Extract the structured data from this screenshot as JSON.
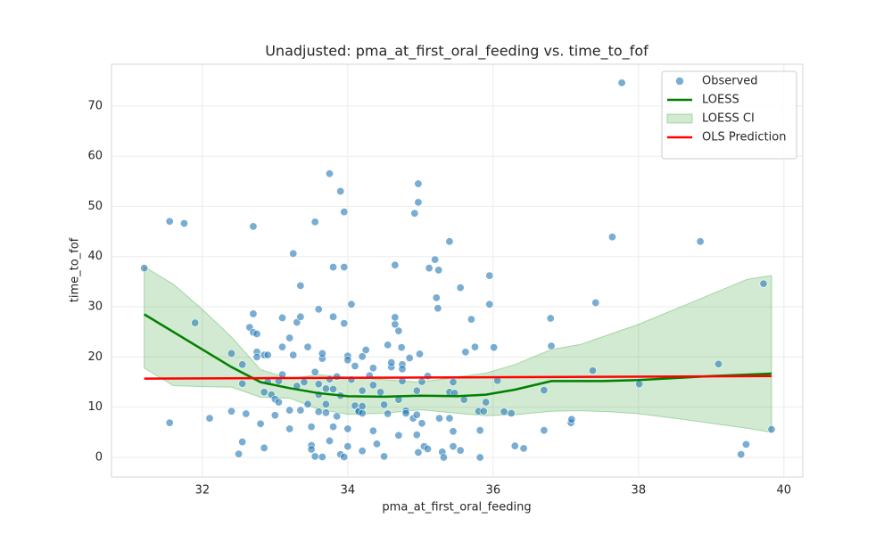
{
  "chart_data": {
    "type": "scatter",
    "title": "Unadjusted: pma_at_first_oral_feeding vs. time_to_fof",
    "x_label": "pma_at_first_oral_feeding",
    "y_label": "time_to_fof",
    "xlim": [
      30.75,
      40.26
    ],
    "ylim": [
      -3.9,
      78.3
    ],
    "xticks": [
      32,
      34,
      36,
      38,
      40
    ],
    "yticks": [
      0,
      10,
      20,
      30,
      40,
      50,
      60,
      70
    ],
    "grid": true,
    "legend": "upper right",
    "series": [
      {
        "name": "Observed",
        "kind": "points",
        "color": "#1f77b4",
        "x": [
          31.2,
          31.55,
          31.75,
          31.55,
          31.9,
          32.1,
          32.4,
          32.4,
          32.5,
          32.55,
          32.55,
          32.55,
          32.6,
          32.65,
          32.7,
          32.7,
          32.7,
          32.75,
          32.75,
          32.75,
          32.8,
          32.85,
          32.85,
          32.85,
          32.9,
          32.9,
          32.95,
          33,
          33.0,
          33.05,
          33.05,
          33.1,
          33.1,
          33.1,
          33.2,
          33.2,
          33.2,
          33.25,
          33.25,
          33.3,
          33.3,
          33.35,
          33.35,
          33.35,
          33.4,
          33.45,
          33.45,
          33.5,
          33.5,
          33.5,
          33.55,
          33.55,
          33.55,
          33.6,
          33.6,
          33.6,
          33.6,
          33.65,
          33.65,
          33.65,
          33.7,
          33.7,
          33.7,
          33.75,
          33.75,
          33.75,
          33.8,
          33.8,
          33.8,
          33.8,
          33.85,
          33.85,
          33.9,
          33.9,
          33.9,
          33.95,
          33.95,
          33.95,
          33.95,
          34,
          34,
          34,
          34,
          34.05,
          34.05,
          34.1,
          34.1,
          34.15,
          34.15,
          34.2,
          34.2,
          34.2,
          34.2,
          34.2,
          34.25,
          34.3,
          34.35,
          34.35,
          34.35,
          34.4,
          34.45,
          34.5,
          34.5,
          34.55,
          34.55,
          34.6,
          34.6,
          34.65,
          34.65,
          34.7,
          34.7,
          34.7,
          34.75,
          34.75,
          34.75,
          34.8,
          34.8,
          34.85,
          34.9,
          34.65,
          34.95,
          34.74,
          34.92,
          34.97,
          34.97,
          34.95,
          34.95,
          34.97,
          34.99,
          35.02,
          35.02,
          35.05,
          35.1,
          35.1,
          35.12,
          35.2,
          35.22,
          35.24,
          35.25,
          35.26,
          35.3,
          35.32,
          35.4,
          35.4,
          35.4,
          35.45,
          35.47,
          35.45,
          35.45,
          35.55,
          35.55,
          35.6,
          35.62,
          35.7,
          35.75,
          35.8,
          35.82,
          35.82,
          35.87,
          35.9,
          35.95,
          35.95,
          36.01,
          36.06,
          36.15,
          36.25,
          36.3,
          36.42,
          36.7,
          36.7,
          36.79,
          36.8,
          37.07,
          37.08,
          37.37,
          37.41,
          37.64,
          37.77,
          38.01,
          38.85,
          39.1,
          39.41,
          39.48,
          39.72,
          39.83
        ],
        "values": [
          37.7,
          47,
          46.6,
          6.9,
          26.8,
          7.8,
          20.7,
          9.2,
          0.7,
          3.1,
          14.7,
          18.5,
          8.7,
          25.9,
          24.9,
          28.6,
          46,
          21,
          20,
          24.6,
          6.7,
          13,
          20.4,
          1.9,
          20.4,
          15.1,
          12.5,
          11.6,
          8.4,
          15.2,
          11,
          22,
          16.5,
          27.8,
          23.8,
          5.7,
          9.4,
          40.6,
          20.4,
          14.2,
          26.9,
          34.2,
          28,
          9.4,
          15,
          10.6,
          22,
          6.1,
          2.4,
          1.6,
          0.2,
          17,
          46.9,
          14.6,
          12.5,
          29.5,
          9.1,
          19.7,
          20.7,
          0.1,
          10.6,
          8.9,
          13.7,
          56.5,
          3.3,
          15.6,
          6.1,
          13.6,
          28,
          37.9,
          8.2,
          16.1,
          12.3,
          53,
          0.6,
          0.1,
          48.9,
          37.9,
          26.7,
          20.2,
          19.4,
          5.7,
          2.2,
          30.5,
          15.5,
          10.3,
          18.2,
          9.3,
          9.1,
          13.3,
          10.2,
          20.1,
          8.8,
          1.3,
          21.4,
          16.3,
          17.8,
          14.4,
          5.3,
          2.7,
          13,
          10.5,
          0.2,
          8.7,
          22.4,
          18,
          18.9,
          38.3,
          26.5,
          25.2,
          4.4,
          11.5,
          18.5,
          17.6,
          15.2,
          9.3,
          8.8,
          19.8,
          7.8,
          27.9,
          8.5,
          21.9,
          48.6,
          50.8,
          54.5,
          13.3,
          4.5,
          1,
          20.6,
          15.1,
          6.8,
          2.2,
          1.7,
          16.2,
          37.7,
          39.4,
          31.8,
          29.7,
          37.3,
          7.8,
          1.1,
          0,
          7.8,
          13,
          43,
          15,
          12.8,
          5.2,
          2.2,
          33.8,
          1.4,
          11.5,
          21,
          27.5,
          22,
          9.2,
          5.4,
          0,
          9.2,
          11,
          30.5,
          36.2,
          21.9,
          15.3,
          9.1,
          8.8,
          2.3,
          1.8,
          5.4,
          13.4,
          27.7,
          22.2,
          6.9,
          7.6,
          17.3,
          30.8,
          43.9,
          74.6,
          14.6,
          43,
          18.6,
          0.6,
          2.6,
          34.6,
          5.6
        ]
      },
      {
        "name": "LOESS",
        "kind": "line",
        "color": "green",
        "x": [
          31.2,
          31.6,
          32,
          32.4,
          32.8,
          33.2,
          33.6,
          34,
          34.5,
          35,
          35.5,
          35.9,
          36.3,
          36.8,
          37.5,
          38,
          38.5,
          39,
          39.5,
          39.83
        ],
        "values": [
          28.5,
          25,
          21.5,
          18,
          15,
          13.8,
          12.8,
          12.2,
          12.1,
          12.3,
          12.2,
          12.5,
          13.5,
          15.2,
          15.2,
          15.4,
          15.8,
          16.2,
          16.5,
          16.7
        ]
      },
      {
        "name": "LOESS CI",
        "kind": "band",
        "color": "#2ca02c",
        "x": [
          31.2,
          31.6,
          32,
          32.4,
          32.8,
          33.2,
          33.6,
          34,
          34.5,
          35,
          35.5,
          35.9,
          36.3,
          36.8,
          37.2,
          37.6,
          38,
          38.5,
          39,
          39.5,
          39.83
        ],
        "upper": [
          38,
          34.5,
          29.5,
          24,
          17.5,
          15.7,
          16.5,
          16,
          15.5,
          15,
          16,
          16.8,
          18.5,
          21.5,
          22.5,
          24.5,
          26.5,
          29.5,
          32.5,
          35.5,
          36.2
        ],
        "lower": [
          17.8,
          14.3,
          14.1,
          14,
          12,
          11.8,
          9.6,
          8.6,
          8.8,
          9.5,
          8.8,
          8.3,
          8.5,
          9.2,
          9.3,
          9.1,
          8.7,
          7.8,
          6.8,
          5.8,
          5
        ]
      },
      {
        "name": "OLS Prediction",
        "kind": "line",
        "color": "red",
        "x": [
          31.2,
          39.83
        ],
        "values": [
          15.7,
          16.2
        ]
      }
    ]
  }
}
